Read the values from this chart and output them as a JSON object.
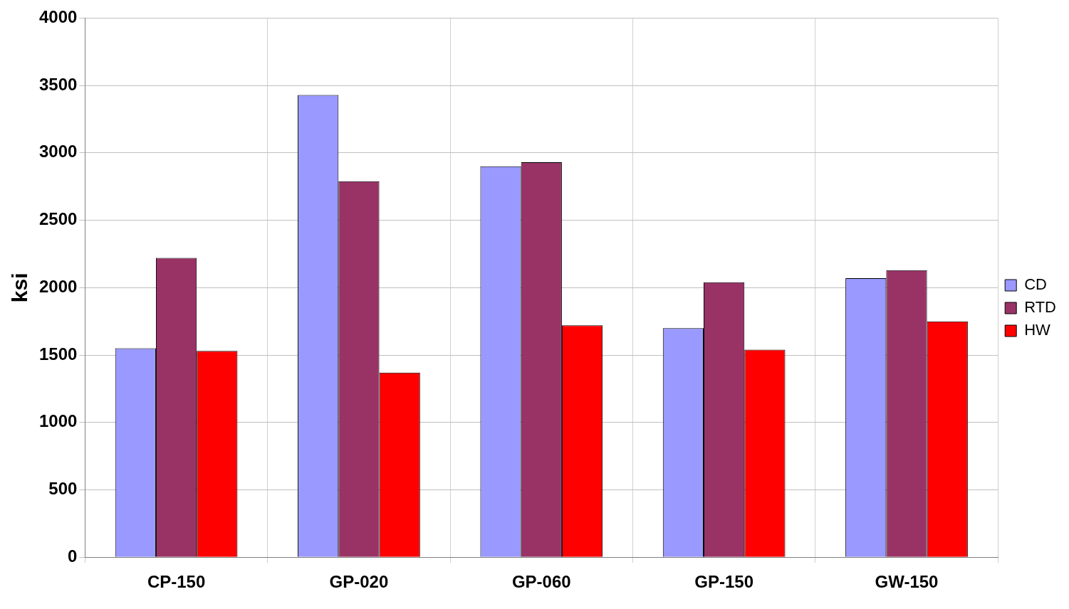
{
  "chart_data": {
    "type": "bar",
    "ylabel": "ksi",
    "categories": [
      "CP-150",
      "GP-020",
      "GP-060",
      "GP-150",
      "GW-150"
    ],
    "series": [
      {
        "name": "CD",
        "color": "#9999ff",
        "values": [
          1550,
          3430,
          2900,
          1700,
          2070
        ]
      },
      {
        "name": "RTD",
        "color": "#993366",
        "values": [
          2220,
          2790,
          2930,
          2040,
          2130
        ]
      },
      {
        "name": "HW",
        "color": "#ff0000",
        "values": [
          1530,
          1370,
          1720,
          1540,
          1750
        ]
      }
    ],
    "ylim": [
      0,
      4000
    ],
    "yticks": [
      0,
      500,
      1000,
      1500,
      2000,
      2500,
      3000,
      3500,
      4000
    ],
    "grid": true,
    "legend": "right"
  }
}
